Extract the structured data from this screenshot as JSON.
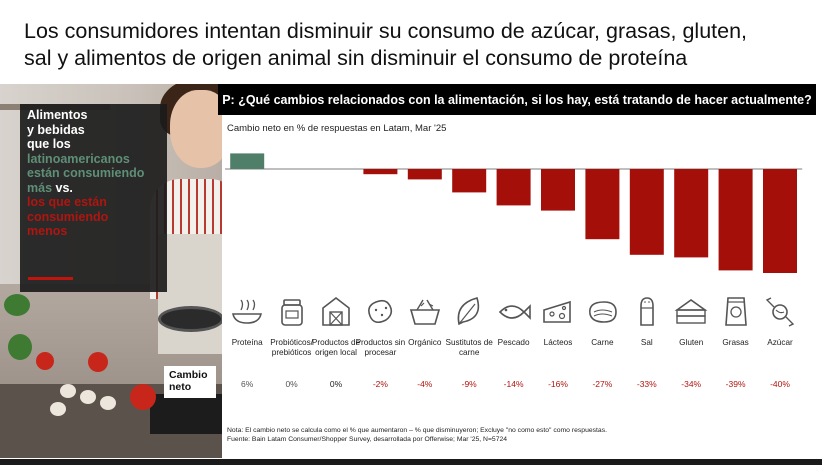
{
  "headline": {
    "line1": "Los consumidores intentan disminuir su consumo de azúcar, grasas, gluten,",
    "line2": "sal y alimentos de origen animal sin disminuir el consumo de proteína"
  },
  "question": "P: ¿Qué cambios relacionados con la alimentación, si los hay, está tratando de hacer actualmente?",
  "subtitle": "Cambio neto en % de respuestas en Latam, Mar '25",
  "info_box": {
    "l1": "Alimentos",
    "l2": "y bebidas",
    "l3": "que los",
    "l4": "latinoamericanos",
    "l5": "están consumiendo",
    "l6a": "más",
    "l6b": " vs.",
    "l7": "los que están",
    "l8": "consumiendo",
    "l9": "menos"
  },
  "cambio_box": {
    "l1": "Cambio",
    "l2": "neto"
  },
  "colors": {
    "positive": "#4f7f68",
    "negative": "#a50f0a",
    "axis": "#555555",
    "question_bg": "#000000"
  },
  "chart_data": {
    "type": "bar",
    "categories": [
      "Proteína",
      "Probióticos/ prebióticos",
      "Productos de origen local",
      "Productos sin procesar",
      "Orgánico",
      "Sustitutos de carne",
      "Pescado",
      "Lácteos",
      "Carne",
      "Sal",
      "Gluten",
      "Grasas",
      "Azúcar"
    ],
    "values": [
      6,
      0,
      0,
      -2,
      -4,
      -9,
      -14,
      -16,
      -27,
      -33,
      -34,
      -39,
      -40
    ],
    "value_labels": [
      "6%",
      "0%",
      "0%",
      "-2%",
      "-4%",
      "-9%",
      "-14%",
      "-16%",
      "-27%",
      "-33%",
      "-34%",
      "-39%",
      "-40%"
    ],
    "icons": [
      "bowl-icon",
      "supplement-jar-icon",
      "barn-icon",
      "potato-icon",
      "basket-icon",
      "leaf-icon",
      "fish-icon",
      "cheese-icon",
      "steak-icon",
      "salt-shaker-icon",
      "bread-icon",
      "grease-bag-icon",
      "candy-icon"
    ],
    "ylim": [
      -40,
      6
    ]
  },
  "note": {
    "l1": "Nota: El cambio neto se calcula como el % que aumentaron – % que disminuyeron; Excluye \"no como esto\" como respuestas.",
    "l2": "Fuente: Bain Latam Consumer/Shopper Survey, desarrollada por Offerwise; Mar '25, N=5724"
  }
}
